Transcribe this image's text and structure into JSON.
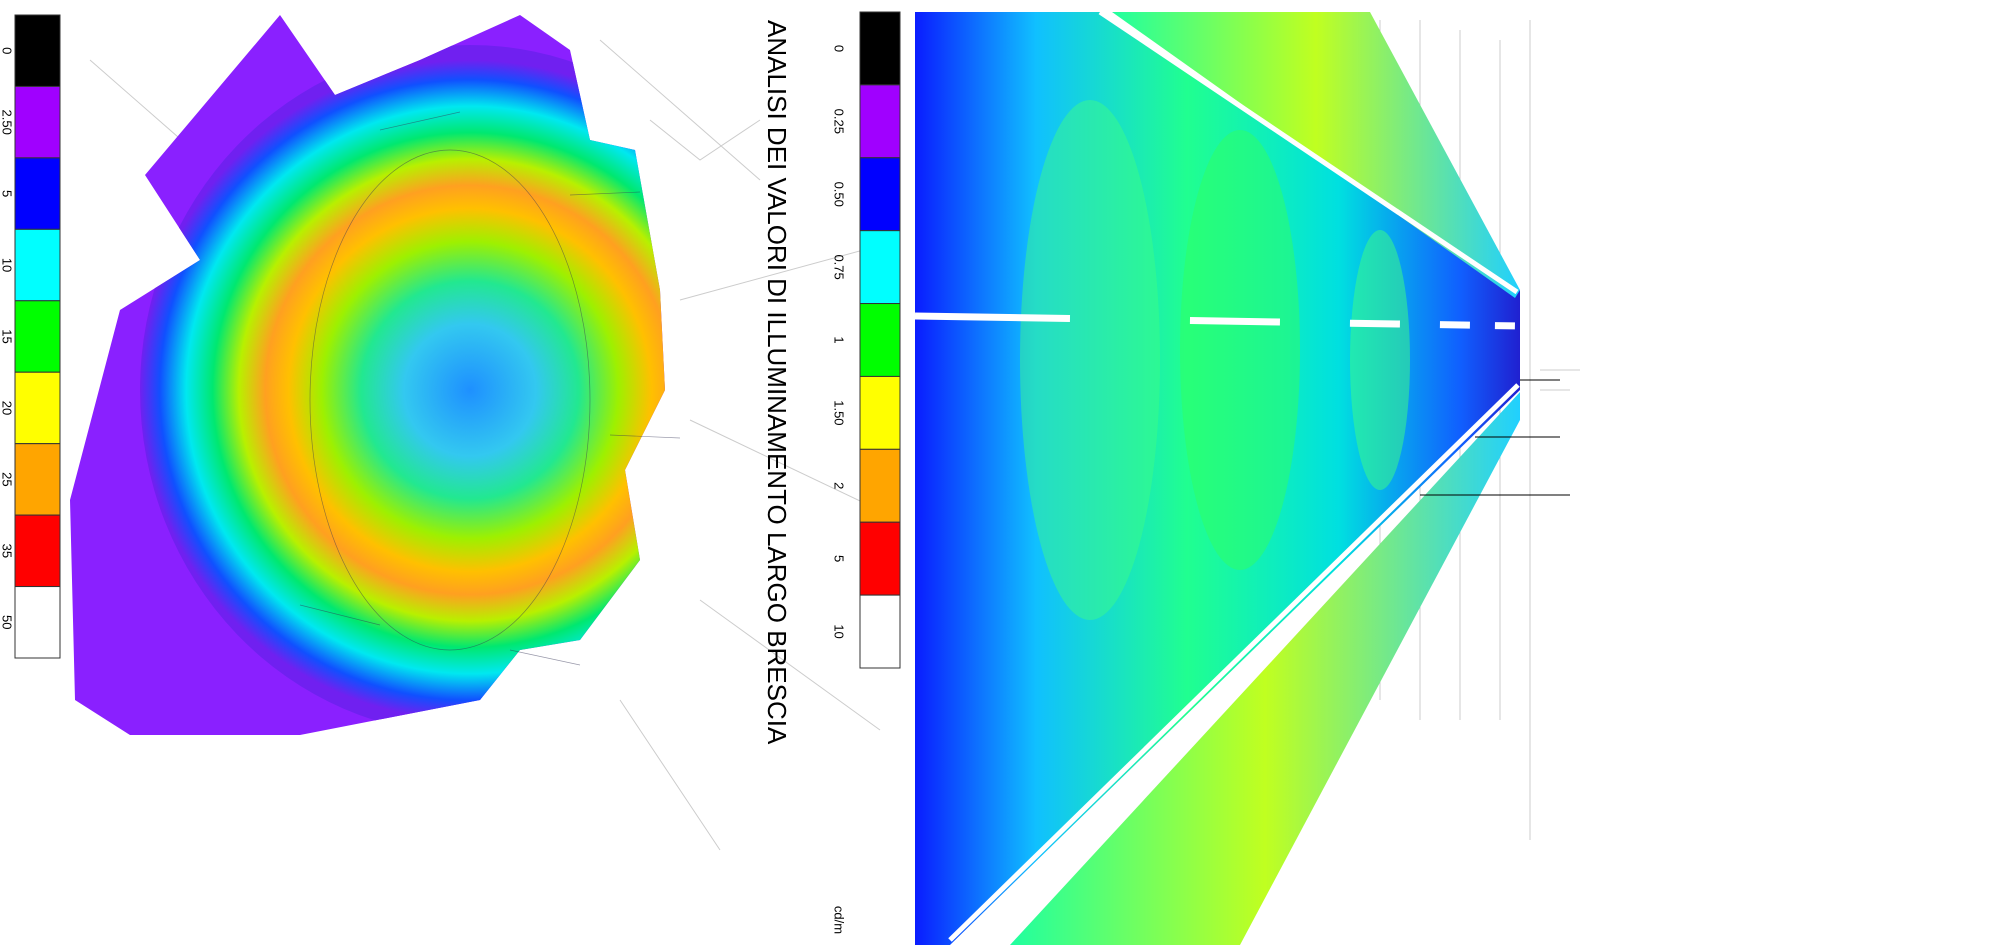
{
  "title": "ANALISI DEI VALORI DI ILLUMINAMENTO LARGO BRESCIA",
  "legends": [
    {
      "labels": [
        "0",
        "2.50",
        "5",
        "10",
        "15",
        "20",
        "25",
        "35",
        "50"
      ],
      "colors": [
        "#000000",
        "#a000ff",
        "#0000ff",
        "#00ffff",
        "#00ff00",
        "#ffff00",
        "#ffa500",
        "#ff0000",
        "#ffffff"
      ]
    },
    {
      "labels": [
        "0",
        "0.25",
        "0.50",
        "0.75",
        "1",
        "1.50",
        "2",
        "5",
        "10"
      ],
      "colors": [
        "#000000",
        "#a000ff",
        "#0000ff",
        "#00ffff",
        "#00ff00",
        "#ffff00",
        "#ffa500",
        "#ff0000",
        "#ffffff"
      ],
      "unit": "cd/m"
    }
  ]
}
